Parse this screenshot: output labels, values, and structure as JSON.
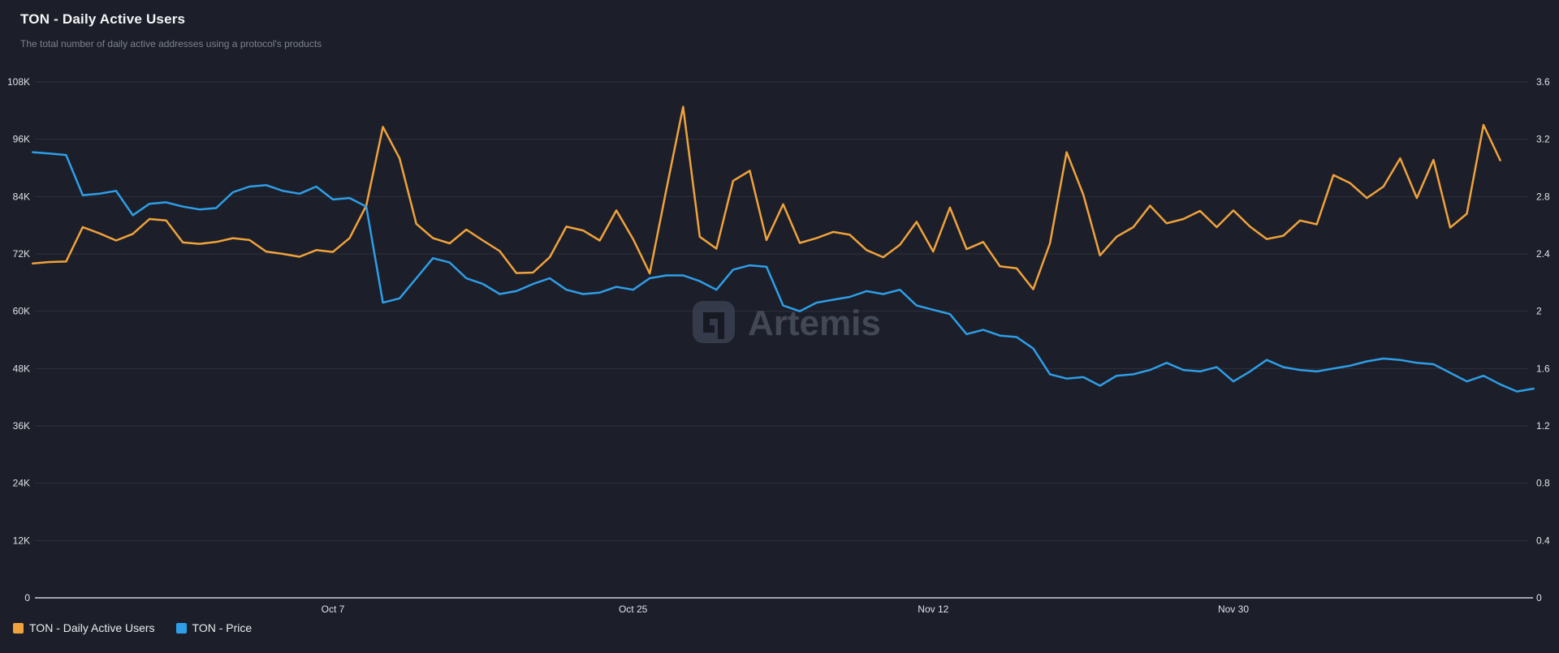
{
  "header": {
    "title": "TON - Daily Active Users",
    "subtitle": "The total number of daily active addresses using a protocol's products"
  },
  "watermark": {
    "text": "Artemis"
  },
  "colors": {
    "background": "#1c1f29",
    "grid": "rgba(255,255,255,0.08)",
    "axis_line": "#ccd0d6",
    "tick_text": "#dfe2e8",
    "dau_line": "#F0A23C",
    "price_line": "#2E9EE8",
    "watermark_badge": "#3a4050",
    "watermark_glyph": "#171a23",
    "watermark_text": "#4a5060"
  },
  "legend": {
    "items": [
      {
        "label": "TON - Daily Active Users",
        "color": "#F0A23C"
      },
      {
        "label": "TON - Price",
        "color": "#2E9EE8"
      }
    ]
  },
  "chart_data": {
    "type": "line",
    "grid": "horizontal",
    "legend_position": "bottom-left",
    "x_ticks": [
      {
        "label": "Oct 7",
        "day": 18
      },
      {
        "label": "Oct 25",
        "day": 36
      },
      {
        "label": "Nov 12",
        "day": 54
      },
      {
        "label": "Nov 30",
        "day": 72
      }
    ],
    "left_axis": {
      "tick_labels": [
        "108K",
        "96K",
        "84K",
        "72K",
        "60K",
        "48K",
        "36K",
        "24K",
        "12K",
        "0"
      ],
      "min": 0,
      "max": 108000
    },
    "right_axis": {
      "tick_labels": [
        "3.6",
        "3.2",
        "2.8",
        "2.4",
        "2",
        "1.6",
        "1.2",
        "0.8",
        "0.4",
        "0"
      ],
      "min": 0,
      "max": 3.6
    },
    "series": [
      {
        "name": "TON - Daily Active Users",
        "axis": "left",
        "color": "#F0A23C",
        "values": [
          70000,
          70300,
          70400,
          77600,
          76300,
          74800,
          76200,
          79300,
          79000,
          74400,
          74100,
          74500,
          75300,
          74900,
          72500,
          72000,
          71400,
          72800,
          72400,
          75300,
          82100,
          98600,
          92000,
          78300,
          75300,
          74200,
          77100,
          74800,
          72600,
          68000,
          68100,
          71300,
          77700,
          76900,
          74800,
          81100,
          75100,
          67900,
          85500,
          102800,
          75600,
          73100,
          87300,
          89400,
          74900,
          82400,
          74300,
          75300,
          76600,
          76000,
          72800,
          71300,
          73900,
          78700,
          72500,
          81700,
          73000,
          74500,
          69400,
          69000,
          64600,
          74200,
          93300,
          84400,
          71700,
          75600,
          77600,
          82100,
          78400,
          79300,
          81000,
          77600,
          81100,
          77700,
          75100,
          75800,
          79000,
          78200,
          88500,
          86800,
          83700,
          86100,
          92000,
          83700,
          91700,
          77500,
          80400,
          99000,
          91600
        ]
      },
      {
        "name": "TON - Price",
        "axis": "right",
        "color": "#2E9EE8",
        "values": [
          3.11,
          3.1,
          3.09,
          2.81,
          2.82,
          2.84,
          2.67,
          2.75,
          2.76,
          2.73,
          2.71,
          2.72,
          2.83,
          2.87,
          2.88,
          2.84,
          2.82,
          2.87,
          2.78,
          2.79,
          2.73,
          2.06,
          2.09,
          2.23,
          2.37,
          2.34,
          2.23,
          2.19,
          2.12,
          2.14,
          2.19,
          2.23,
          2.15,
          2.12,
          2.13,
          2.17,
          2.15,
          2.23,
          2.25,
          2.25,
          2.21,
          2.15,
          2.29,
          2.32,
          2.31,
          2.04,
          2.0,
          2.06,
          2.08,
          2.1,
          2.14,
          2.12,
          2.15,
          2.04,
          2.01,
          1.98,
          1.84,
          1.87,
          1.83,
          1.82,
          1.74,
          1.56,
          1.53,
          1.54,
          1.48,
          1.55,
          1.56,
          1.59,
          1.64,
          1.59,
          1.58,
          1.61,
          1.51,
          1.58,
          1.66,
          1.61,
          1.59,
          1.58,
          1.6,
          1.62,
          1.65,
          1.67,
          1.66,
          1.64,
          1.63,
          1.57,
          1.51,
          1.55,
          1.49,
          1.44,
          1.46
        ]
      }
    ]
  }
}
